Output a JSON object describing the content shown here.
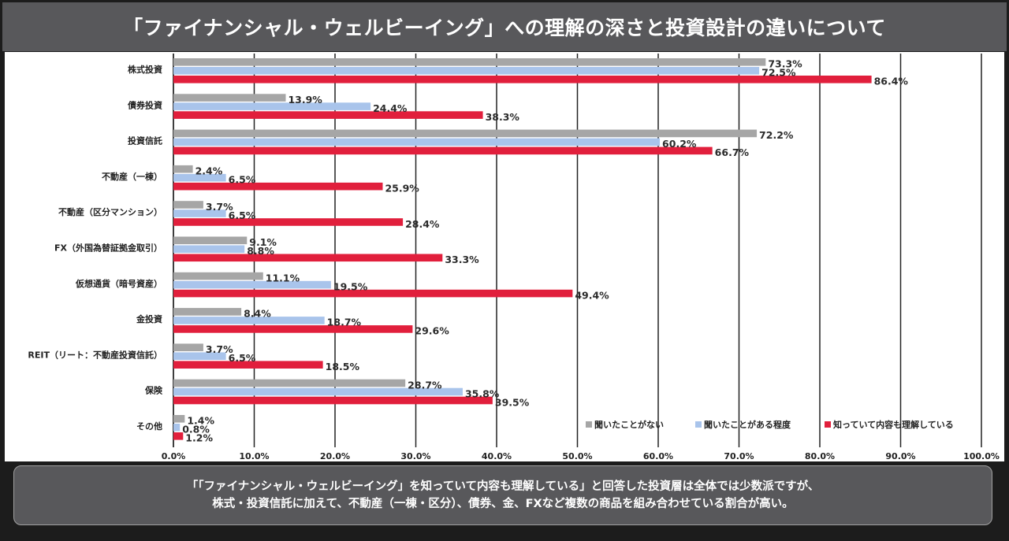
{
  "title": "「ファイナンシャル・ウェルビーイング」への理解の深さと投資設計の違いについて",
  "chart_data": {
    "type": "bar",
    "orientation": "horizontal",
    "title": "「ファイナンシャル・ウェルビーイング」への理解の深さと投資設計の違いについて",
    "categories": [
      "株式投資",
      "債券投資",
      "投資信託",
      "不動産（一棟）",
      "不動産（区分マンション）",
      "FX（外国為替証拠金取引）",
      "仮想通貨（暗号資産）",
      "金投資",
      "REIT（リート：不動産投資信託）",
      "保険",
      "その他"
    ],
    "series": [
      {
        "name": "聞いたことがない",
        "color": "#a6a6a6",
        "values": [
          73.3,
          13.9,
          72.2,
          2.4,
          3.7,
          9.1,
          11.1,
          8.4,
          3.7,
          28.7,
          1.4
        ],
        "labels": [
          "73.3%",
          "13.9%",
          "72.2%",
          "2.4%",
          "3.7%",
          "9.1%",
          "11.1%",
          "8.4%",
          "3.7%",
          "28.7%",
          "1.4%"
        ]
      },
      {
        "name": "聞いたことがある程度",
        "color": "#a9c4eb",
        "values": [
          72.5,
          24.4,
          60.2,
          6.5,
          6.5,
          8.8,
          19.5,
          18.7,
          6.5,
          35.8,
          0.8
        ],
        "labels": [
          "72.5%",
          "24.4%",
          "60.2%",
          "6.5%",
          "6.5%",
          "8.8%",
          "19.5%",
          "18.7%",
          "6.5%",
          "35.8%",
          "0.8%"
        ]
      },
      {
        "name": "知っていて内容も理解している",
        "color": "#e11f3c",
        "values": [
          86.4,
          38.3,
          66.7,
          25.9,
          28.4,
          33.3,
          49.4,
          29.6,
          18.5,
          39.5,
          1.2
        ],
        "labels": [
          "86.4%",
          "38.3%",
          "66.7%",
          "25.9%",
          "28.4%",
          "33.3%",
          "49.4%",
          "29.6%",
          "18.5%",
          "39.5%",
          "1.2%"
        ]
      }
    ],
    "xlim": [
      0,
      100
    ],
    "xticks": [
      "0.0%",
      "10.0%",
      "20.0%",
      "30.0%",
      "40.0%",
      "50.0%",
      "60.0%",
      "70.0%",
      "80.0%",
      "90.0%",
      "100.0%"
    ],
    "xlabel": "",
    "ylabel": "",
    "grid": true,
    "legend_position": "bottom-right"
  },
  "note": {
    "line1": "「「ファイナンシャル・ウェルビーイング」を知っていて内容も理解している」と回答した投資層は全体では少数派ですが、",
    "line2": "株式・投資信託に加えて、不動産（一棟・区分）、債券、金、FXなど複数の商品を組み合わせている割合が高い。"
  }
}
